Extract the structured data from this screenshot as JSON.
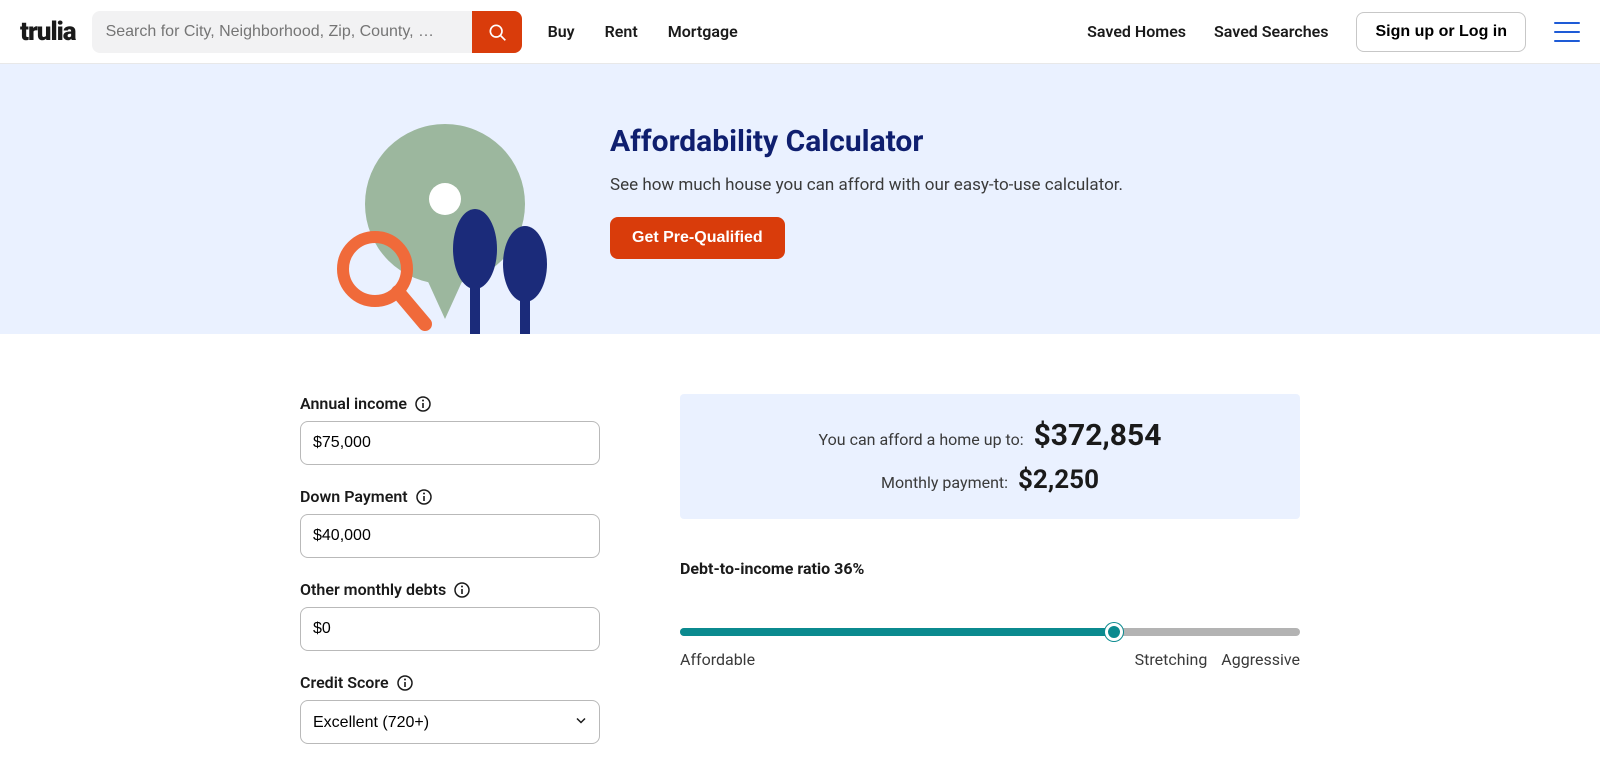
{
  "header": {
    "logo": "trulia",
    "search_placeholder": "Search for City, Neighborhood, Zip, County, …",
    "nav": {
      "buy": "Buy",
      "rent": "Rent",
      "mortgage": "Mortgage"
    },
    "right": {
      "saved_homes": "Saved Homes",
      "saved_searches": "Saved Searches",
      "signin": "Sign up or Log in"
    }
  },
  "hero": {
    "title": "Affordability Calculator",
    "subtitle": "See how much house you can afford with our easy-to-use calculator.",
    "cta": "Get Pre-Qualified",
    "colors": {
      "bg": "#eaf1ff",
      "title": "#0f1f6f",
      "cta_bg": "#d93c0b"
    },
    "illustration": {
      "pin_color": "#9cb79e",
      "pin_hole_color": "#ffffff",
      "magnifier_color": "#f06a3a",
      "tree_color": "#1b2b7a"
    }
  },
  "form": {
    "annual_income": {
      "label": "Annual income",
      "value": "$75,000"
    },
    "down_payment": {
      "label": "Down Payment",
      "value": "$40,000"
    },
    "other_debts": {
      "label": "Other monthly debts",
      "value": "$0"
    },
    "credit_score": {
      "label": "Credit Score",
      "value": "Excellent (720+)"
    }
  },
  "results": {
    "box_bg": "#eaf1ff",
    "afford_label": "You can afford a home up to:",
    "afford_value": "$372,854",
    "monthly_label": "Monthly payment:",
    "monthly_value": "$2,250",
    "dti_label": "Debt-to-income ratio 36%"
  },
  "slider": {
    "percent": 70,
    "track_color": "#b3b3b3",
    "fill_color": "#0b8a8f",
    "labels": {
      "left": "Affordable",
      "mid": "Stretching",
      "right": "Aggressive"
    }
  }
}
